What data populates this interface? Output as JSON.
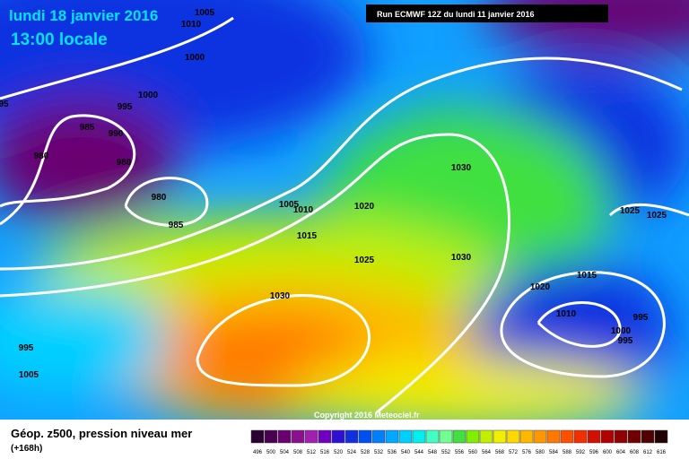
{
  "header": {
    "date": "lundi 18 janvier 2016",
    "time": "13:00 locale",
    "run": "Run ECMWF 12Z du lundi 11 janvier 2016"
  },
  "copyright": "Copyright 2016 Meteociel.fr",
  "footer": {
    "title": "Géop. z500, pression niveau mer",
    "lead": "(+168h)"
  },
  "isobar_labels": [
    1005,
    1010,
    1000,
    1000,
    995,
    985,
    990,
    980,
    980,
    980,
    985,
    1005,
    1010,
    1015,
    1025,
    1020,
    1030,
    1030,
    1030,
    1025,
    1025,
    1020,
    1015,
    1010,
    995,
    1000,
    995,
    995,
    1005,
    95
  ],
  "scale": {
    "labels": [
      496,
      500,
      504,
      508,
      512,
      516,
      520,
      524,
      528,
      532,
      536,
      540,
      544,
      548,
      552,
      556,
      560,
      564,
      568,
      572,
      576,
      580,
      584,
      588,
      592,
      596,
      600,
      604,
      608,
      612,
      616
    ],
    "colors": [
      "#2a0030",
      "#4a0050",
      "#6a0070",
      "#8a1090",
      "#a020b0",
      "#7000c0",
      "#3010d0",
      "#1030e0",
      "#0050f0",
      "#0080ff",
      "#00a8ff",
      "#00d0ff",
      "#00f0f0",
      "#40ffc0",
      "#70ff90",
      "#40e040",
      "#80f000",
      "#c0f000",
      "#f0f000",
      "#ffd800",
      "#ffb800",
      "#ff9800",
      "#ff7800",
      "#ff5000",
      "#f03000",
      "#d01000",
      "#b00000",
      "#900000",
      "#700000",
      "#500000",
      "#200000"
    ]
  }
}
